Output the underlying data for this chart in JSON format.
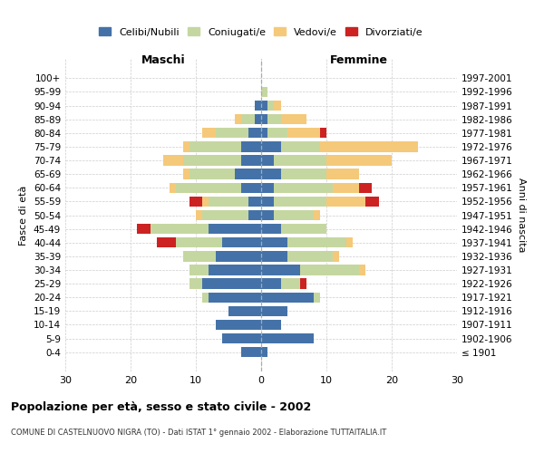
{
  "age_groups": [
    "100+",
    "95-99",
    "90-94",
    "85-89",
    "80-84",
    "75-79",
    "70-74",
    "65-69",
    "60-64",
    "55-59",
    "50-54",
    "45-49",
    "40-44",
    "35-39",
    "30-34",
    "25-29",
    "20-24",
    "15-19",
    "10-14",
    "5-9",
    "0-4"
  ],
  "birth_years": [
    "≤ 1901",
    "1902-1906",
    "1907-1911",
    "1912-1916",
    "1917-1921",
    "1922-1926",
    "1927-1931",
    "1932-1936",
    "1937-1941",
    "1942-1946",
    "1947-1951",
    "1952-1956",
    "1957-1961",
    "1962-1966",
    "1967-1971",
    "1972-1976",
    "1977-1981",
    "1982-1986",
    "1987-1991",
    "1992-1996",
    "1997-2001"
  ],
  "males": {
    "celibi": [
      0,
      0,
      1,
      1,
      2,
      3,
      3,
      4,
      3,
      2,
      2,
      8,
      6,
      7,
      8,
      9,
      8,
      5,
      7,
      6,
      3
    ],
    "coniugati": [
      0,
      0,
      0,
      2,
      5,
      8,
      9,
      7,
      10,
      6,
      7,
      9,
      7,
      5,
      3,
      2,
      1,
      0,
      0,
      0,
      0
    ],
    "vedovi": [
      0,
      0,
      0,
      1,
      2,
      1,
      3,
      1,
      1,
      1,
      1,
      0,
      0,
      0,
      0,
      0,
      0,
      0,
      0,
      0,
      0
    ],
    "divorziati": [
      0,
      0,
      0,
      0,
      0,
      0,
      0,
      0,
      0,
      2,
      0,
      2,
      3,
      0,
      0,
      0,
      0,
      0,
      0,
      0,
      0
    ]
  },
  "females": {
    "nubili": [
      0,
      0,
      1,
      1,
      1,
      3,
      2,
      3,
      2,
      2,
      2,
      3,
      4,
      4,
      6,
      3,
      8,
      4,
      3,
      8,
      1
    ],
    "coniugate": [
      0,
      1,
      1,
      2,
      3,
      6,
      8,
      7,
      9,
      8,
      6,
      7,
      9,
      7,
      9,
      3,
      1,
      0,
      0,
      0,
      0
    ],
    "vedove": [
      0,
      0,
      1,
      4,
      5,
      15,
      10,
      5,
      4,
      6,
      1,
      0,
      1,
      1,
      1,
      0,
      0,
      0,
      0,
      0,
      0
    ],
    "divorziate": [
      0,
      0,
      0,
      0,
      1,
      0,
      0,
      0,
      2,
      2,
      0,
      0,
      0,
      0,
      0,
      1,
      0,
      0,
      0,
      0,
      0
    ]
  },
  "colors": {
    "celibi": "#4472a8",
    "coniugati": "#c5d7a0",
    "vedovi": "#f5c97a",
    "divorziati": "#cc2222"
  },
  "xlim": 30,
  "title": "Popolazione per età, sesso e stato civile - 2002",
  "subtitle": "COMUNE DI CASTELNUOVO NIGRA (TO) - Dati ISTAT 1° gennaio 2002 - Elaborazione TUTTAITALIA.IT",
  "xlabel_left": "Maschi",
  "xlabel_right": "Femmine",
  "ylabel_left": "Fasce di età",
  "ylabel_right": "Anni di nascita",
  "legend_labels": [
    "Celibi/Nubili",
    "Coniugati/e",
    "Vedovi/e",
    "Divorziati/e"
  ],
  "background_color": "#ffffff",
  "grid_color": "#cccccc"
}
